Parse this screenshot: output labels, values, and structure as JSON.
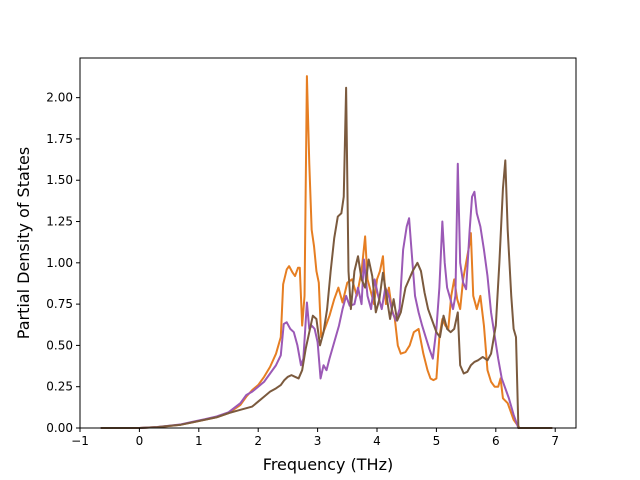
{
  "chart_data": {
    "type": "line",
    "title": "",
    "xlabel": "Frequency (THz)",
    "ylabel": "Partial Density of States",
    "xlim": [
      -1,
      7.35
    ],
    "ylim": [
      0,
      2.24
    ],
    "xticks": [
      -1,
      0,
      1,
      2,
      3,
      4,
      5,
      6,
      7
    ],
    "yticks": [
      0.0,
      0.25,
      0.5,
      0.75,
      1.0,
      1.25,
      1.5,
      1.75,
      2.0
    ],
    "ytick_labels": [
      "0.00",
      "0.25",
      "0.50",
      "0.75",
      "1.00",
      "1.25",
      "1.50",
      "1.75",
      "2.00"
    ],
    "grid": false,
    "legend": "none",
    "series": [
      {
        "color": "#e67e22",
        "points": [
          [
            -0.65,
            0
          ],
          [
            -0.2,
            0
          ],
          [
            0,
            0
          ],
          [
            0.3,
            0.005
          ],
          [
            0.5,
            0.012
          ],
          [
            0.7,
            0.02
          ],
          [
            0.9,
            0.035
          ],
          [
            1.1,
            0.05
          ],
          [
            1.3,
            0.065
          ],
          [
            1.5,
            0.09
          ],
          [
            1.7,
            0.14
          ],
          [
            1.8,
            0.19
          ],
          [
            1.9,
            0.23
          ],
          [
            2.0,
            0.26
          ],
          [
            2.1,
            0.31
          ],
          [
            2.2,
            0.37
          ],
          [
            2.3,
            0.45
          ],
          [
            2.38,
            0.55
          ],
          [
            2.42,
            0.87
          ],
          [
            2.48,
            0.96
          ],
          [
            2.52,
            0.98
          ],
          [
            2.58,
            0.94
          ],
          [
            2.62,
            0.92
          ],
          [
            2.67,
            0.97
          ],
          [
            2.7,
            0.97
          ],
          [
            2.74,
            0.62
          ],
          [
            2.78,
            0.8
          ],
          [
            2.82,
            2.13
          ],
          [
            2.86,
            1.6
          ],
          [
            2.9,
            1.2
          ],
          [
            2.94,
            1.1
          ],
          [
            2.98,
            0.95
          ],
          [
            3.02,
            0.88
          ],
          [
            3.06,
            0.55
          ],
          [
            3.12,
            0.6
          ],
          [
            3.2,
            0.68
          ],
          [
            3.28,
            0.78
          ],
          [
            3.35,
            0.85
          ],
          [
            3.42,
            0.76
          ],
          [
            3.5,
            0.88
          ],
          [
            3.58,
            0.9
          ],
          [
            3.66,
            0.8
          ],
          [
            3.74,
            0.95
          ],
          [
            3.8,
            1.16
          ],
          [
            3.84,
            0.9
          ],
          [
            3.9,
            0.82
          ],
          [
            3.95,
            0.75
          ],
          [
            4.0,
            0.9
          ],
          [
            4.05,
            0.95
          ],
          [
            4.1,
            1.04
          ],
          [
            4.15,
            0.75
          ],
          [
            4.2,
            0.85
          ],
          [
            4.25,
            0.72
          ],
          [
            4.3,
            0.66
          ],
          [
            4.35,
            0.5
          ],
          [
            4.4,
            0.45
          ],
          [
            4.48,
            0.46
          ],
          [
            4.55,
            0.5
          ],
          [
            4.62,
            0.58
          ],
          [
            4.7,
            0.6
          ],
          [
            4.78,
            0.45
          ],
          [
            4.85,
            0.35
          ],
          [
            4.9,
            0.3
          ],
          [
            4.95,
            0.29
          ],
          [
            5.0,
            0.3
          ],
          [
            5.05,
            0.55
          ],
          [
            5.1,
            0.66
          ],
          [
            5.15,
            0.62
          ],
          [
            5.2,
            0.6
          ],
          [
            5.25,
            0.8
          ],
          [
            5.3,
            0.9
          ],
          [
            5.35,
            0.78
          ],
          [
            5.4,
            0.72
          ],
          [
            5.45,
            0.9
          ],
          [
            5.5,
            1.0
          ],
          [
            5.55,
            1.1
          ],
          [
            5.58,
            1.18
          ],
          [
            5.62,
            0.8
          ],
          [
            5.68,
            0.72
          ],
          [
            5.74,
            0.8
          ],
          [
            5.8,
            0.62
          ],
          [
            5.86,
            0.35
          ],
          [
            5.92,
            0.28
          ],
          [
            5.98,
            0.25
          ],
          [
            6.04,
            0.25
          ],
          [
            6.08,
            0.3
          ],
          [
            6.12,
            0.18
          ],
          [
            6.2,
            0.15
          ],
          [
            6.3,
            0.05
          ],
          [
            6.4,
            0
          ],
          [
            6.7,
            0
          ],
          [
            6.95,
            0
          ]
        ]
      },
      {
        "color": "#9b59b6",
        "points": [
          [
            -0.65,
            0
          ],
          [
            -0.2,
            0
          ],
          [
            0,
            0
          ],
          [
            0.3,
            0.006
          ],
          [
            0.5,
            0.014
          ],
          [
            0.7,
            0.022
          ],
          [
            0.9,
            0.038
          ],
          [
            1.1,
            0.053
          ],
          [
            1.3,
            0.07
          ],
          [
            1.5,
            0.095
          ],
          [
            1.7,
            0.15
          ],
          [
            1.8,
            0.2
          ],
          [
            1.9,
            0.22
          ],
          [
            2.0,
            0.25
          ],
          [
            2.1,
            0.28
          ],
          [
            2.2,
            0.33
          ],
          [
            2.3,
            0.38
          ],
          [
            2.38,
            0.44
          ],
          [
            2.43,
            0.63
          ],
          [
            2.48,
            0.64
          ],
          [
            2.54,
            0.6
          ],
          [
            2.6,
            0.58
          ],
          [
            2.66,
            0.5
          ],
          [
            2.72,
            0.38
          ],
          [
            2.76,
            0.42
          ],
          [
            2.82,
            0.76
          ],
          [
            2.86,
            0.6
          ],
          [
            2.9,
            0.62
          ],
          [
            2.95,
            0.6
          ],
          [
            3.0,
            0.52
          ],
          [
            3.05,
            0.3
          ],
          [
            3.1,
            0.38
          ],
          [
            3.15,
            0.35
          ],
          [
            3.2,
            0.42
          ],
          [
            3.28,
            0.52
          ],
          [
            3.36,
            0.62
          ],
          [
            3.42,
            0.72
          ],
          [
            3.48,
            0.8
          ],
          [
            3.54,
            0.74
          ],
          [
            3.62,
            0.75
          ],
          [
            3.68,
            0.85
          ],
          [
            3.74,
            0.75
          ],
          [
            3.78,
            1.02
          ],
          [
            3.84,
            0.8
          ],
          [
            3.9,
            0.72
          ],
          [
            3.96,
            0.9
          ],
          [
            4.02,
            0.8
          ],
          [
            4.08,
            0.72
          ],
          [
            4.14,
            0.85
          ],
          [
            4.2,
            0.8
          ],
          [
            4.26,
            0.7
          ],
          [
            4.32,
            0.65
          ],
          [
            4.38,
            0.72
          ],
          [
            4.44,
            1.08
          ],
          [
            4.5,
            1.22
          ],
          [
            4.54,
            1.27
          ],
          [
            4.58,
            1.08
          ],
          [
            4.64,
            0.8
          ],
          [
            4.7,
            0.7
          ],
          [
            4.76,
            0.62
          ],
          [
            4.82,
            0.55
          ],
          [
            4.88,
            0.48
          ],
          [
            4.94,
            0.42
          ],
          [
            5.0,
            0.6
          ],
          [
            5.05,
            0.85
          ],
          [
            5.1,
            1.25
          ],
          [
            5.14,
            1.0
          ],
          [
            5.18,
            0.85
          ],
          [
            5.22,
            0.8
          ],
          [
            5.28,
            0.72
          ],
          [
            5.32,
            0.8
          ],
          [
            5.36,
            1.6
          ],
          [
            5.4,
            1.0
          ],
          [
            5.45,
            0.88
          ],
          [
            5.5,
            0.84
          ],
          [
            5.56,
            1.2
          ],
          [
            5.6,
            1.4
          ],
          [
            5.64,
            1.43
          ],
          [
            5.68,
            1.3
          ],
          [
            5.74,
            1.22
          ],
          [
            5.8,
            1.08
          ],
          [
            5.86,
            0.92
          ],
          [
            5.92,
            0.7
          ],
          [
            5.98,
            0.56
          ],
          [
            6.04,
            0.42
          ],
          [
            6.1,
            0.3
          ],
          [
            6.16,
            0.24
          ],
          [
            6.22,
            0.18
          ],
          [
            6.3,
            0.08
          ],
          [
            6.38,
            0
          ],
          [
            6.7,
            0
          ],
          [
            6.95,
            0
          ]
        ]
      },
      {
        "color": "#7b5a3e",
        "points": [
          [
            -0.65,
            0
          ],
          [
            -0.2,
            0
          ],
          [
            0,
            0
          ],
          [
            0.3,
            0.005
          ],
          [
            0.5,
            0.013
          ],
          [
            0.7,
            0.02
          ],
          [
            0.9,
            0.035
          ],
          [
            1.1,
            0.05
          ],
          [
            1.3,
            0.065
          ],
          [
            1.5,
            0.09
          ],
          [
            1.7,
            0.11
          ],
          [
            1.8,
            0.12
          ],
          [
            1.9,
            0.13
          ],
          [
            2.0,
            0.16
          ],
          [
            2.1,
            0.19
          ],
          [
            2.2,
            0.22
          ],
          [
            2.3,
            0.24
          ],
          [
            2.38,
            0.26
          ],
          [
            2.44,
            0.29
          ],
          [
            2.5,
            0.31
          ],
          [
            2.56,
            0.32
          ],
          [
            2.62,
            0.31
          ],
          [
            2.68,
            0.3
          ],
          [
            2.74,
            0.35
          ],
          [
            2.8,
            0.48
          ],
          [
            2.86,
            0.58
          ],
          [
            2.92,
            0.68
          ],
          [
            2.98,
            0.66
          ],
          [
            3.04,
            0.5
          ],
          [
            3.1,
            0.58
          ],
          [
            3.16,
            0.72
          ],
          [
            3.22,
            0.95
          ],
          [
            3.28,
            1.15
          ],
          [
            3.34,
            1.28
          ],
          [
            3.4,
            1.3
          ],
          [
            3.44,
            1.4
          ],
          [
            3.48,
            2.06
          ],
          [
            3.52,
            0.95
          ],
          [
            3.56,
            0.72
          ],
          [
            3.62,
            0.95
          ],
          [
            3.68,
            1.04
          ],
          [
            3.74,
            0.9
          ],
          [
            3.8,
            0.85
          ],
          [
            3.86,
            1.02
          ],
          [
            3.92,
            0.92
          ],
          [
            3.98,
            0.7
          ],
          [
            4.04,
            0.78
          ],
          [
            4.1,
            0.94
          ],
          [
            4.16,
            0.8
          ],
          [
            4.22,
            0.66
          ],
          [
            4.28,
            0.78
          ],
          [
            4.34,
            0.65
          ],
          [
            4.4,
            0.7
          ],
          [
            4.48,
            0.85
          ],
          [
            4.54,
            0.9
          ],
          [
            4.6,
            0.95
          ],
          [
            4.68,
            1.0
          ],
          [
            4.74,
            0.95
          ],
          [
            4.8,
            0.82
          ],
          [
            4.86,
            0.72
          ],
          [
            4.92,
            0.66
          ],
          [
            5.0,
            0.58
          ],
          [
            5.06,
            0.55
          ],
          [
            5.12,
            0.68
          ],
          [
            5.18,
            0.6
          ],
          [
            5.24,
            0.58
          ],
          [
            5.3,
            0.6
          ],
          [
            5.36,
            0.7
          ],
          [
            5.4,
            0.38
          ],
          [
            5.46,
            0.33
          ],
          [
            5.52,
            0.34
          ],
          [
            5.58,
            0.38
          ],
          [
            5.64,
            0.4
          ],
          [
            5.7,
            0.41
          ],
          [
            5.78,
            0.43
          ],
          [
            5.86,
            0.41
          ],
          [
            5.92,
            0.45
          ],
          [
            6.0,
            0.62
          ],
          [
            6.06,
            1.0
          ],
          [
            6.12,
            1.45
          ],
          [
            6.16,
            1.62
          ],
          [
            6.2,
            1.2
          ],
          [
            6.26,
            0.8
          ],
          [
            6.3,
            0.6
          ],
          [
            6.34,
            0.55
          ],
          [
            6.38,
            0
          ],
          [
            6.7,
            0
          ],
          [
            6.95,
            0
          ]
        ]
      }
    ]
  }
}
